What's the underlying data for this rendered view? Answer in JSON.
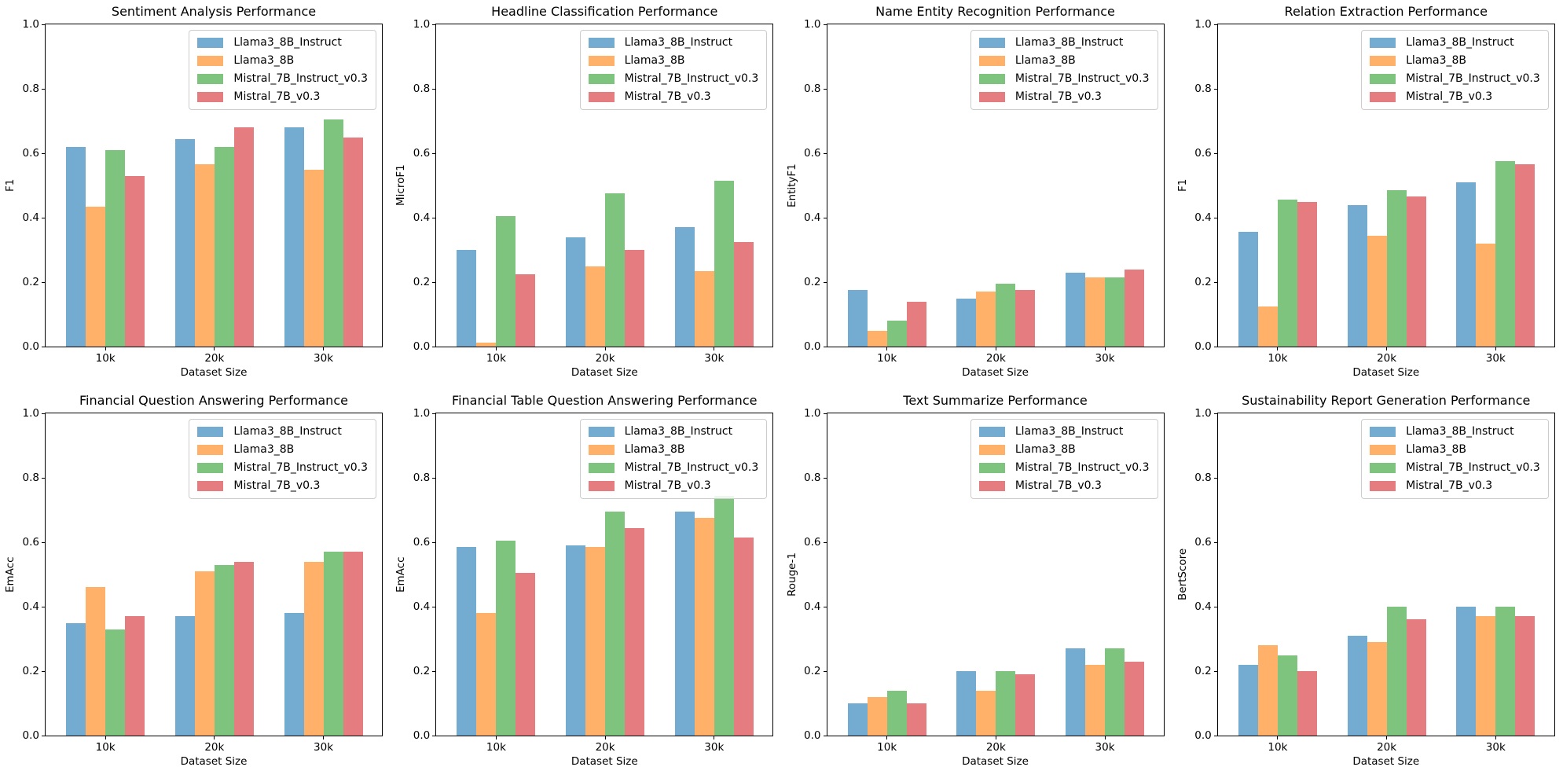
{
  "figure": {
    "background": "#ffffff"
  },
  "series_colors": [
    "#74ABD1",
    "#FFB169",
    "#7EC47E",
    "#E57D80"
  ],
  "legend": {
    "labels": [
      "Llama3_8B_Instruct",
      "Llama3_8B",
      "Mistral_7B_Instruct_v0.3",
      "Mistral_7B_v0.3"
    ],
    "position": "upper right"
  },
  "axis": {
    "yticks": [
      "0.0",
      "0.2",
      "0.4",
      "0.6",
      "0.8",
      "1.0"
    ],
    "ylim": [
      0,
      1
    ],
    "grid": false
  },
  "chart_data": [
    {
      "type": "bar",
      "title": "Sentiment Analysis Performance",
      "ylabel": "F1",
      "xlabel": "Dataset Size",
      "categories": [
        "10k",
        "20k",
        "30k"
      ],
      "ylim": [
        0,
        1
      ],
      "legend_position": "upper right",
      "series": [
        {
          "name": "Llama3_8B_Instruct",
          "values": [
            0.62,
            0.645,
            0.68
          ]
        },
        {
          "name": "Llama3_8B",
          "values": [
            0.435,
            0.565,
            0.55
          ]
        },
        {
          "name": "Mistral_7B_Instruct_v0.3",
          "values": [
            0.61,
            0.62,
            0.705
          ]
        },
        {
          "name": "Mistral_7B_v0.3",
          "values": [
            0.53,
            0.68,
            0.65
          ]
        }
      ]
    },
    {
      "type": "bar",
      "title": "Headline Classification Performance",
      "ylabel": "MicroF1",
      "xlabel": "Dataset Size",
      "categories": [
        "10k",
        "20k",
        "30k"
      ],
      "ylim": [
        0,
        1
      ],
      "legend_position": "upper right",
      "series": [
        {
          "name": "Llama3_8B_Instruct",
          "values": [
            0.3,
            0.34,
            0.37
          ]
        },
        {
          "name": "Llama3_8B",
          "values": [
            0.012,
            0.25,
            0.235
          ]
        },
        {
          "name": "Mistral_7B_Instruct_v0.3",
          "values": [
            0.405,
            0.475,
            0.515
          ]
        },
        {
          "name": "Mistral_7B_v0.3",
          "values": [
            0.225,
            0.3,
            0.325
          ]
        }
      ]
    },
    {
      "type": "bar",
      "title": "Name Entity Recognition Performance",
      "ylabel": "EntityF1",
      "xlabel": "Dataset Size",
      "categories": [
        "10k",
        "20k",
        "30k"
      ],
      "ylim": [
        0,
        1
      ],
      "legend_position": "upper right",
      "series": [
        {
          "name": "Llama3_8B_Instruct",
          "values": [
            0.175,
            0.15,
            0.23
          ]
        },
        {
          "name": "Llama3_8B",
          "values": [
            0.05,
            0.17,
            0.215
          ]
        },
        {
          "name": "Mistral_7B_Instruct_v0.3",
          "values": [
            0.08,
            0.195,
            0.215
          ]
        },
        {
          "name": "Mistral_7B_v0.3",
          "values": [
            0.14,
            0.175,
            0.24
          ]
        }
      ]
    },
    {
      "type": "bar",
      "title": "Relation Extraction Performance",
      "ylabel": "F1",
      "xlabel": "Dataset Size",
      "categories": [
        "10k",
        "20k",
        "30k"
      ],
      "ylim": [
        0,
        1
      ],
      "legend_position": "upper right",
      "series": [
        {
          "name": "Llama3_8B_Instruct",
          "values": [
            0.355,
            0.44,
            0.51
          ]
        },
        {
          "name": "Llama3_8B",
          "values": [
            0.125,
            0.345,
            0.32
          ]
        },
        {
          "name": "Mistral_7B_Instruct_v0.3",
          "values": [
            0.455,
            0.485,
            0.575
          ]
        },
        {
          "name": "Mistral_7B_v0.3",
          "values": [
            0.45,
            0.465,
            0.565
          ]
        }
      ]
    },
    {
      "type": "bar",
      "title": "Financial Question Answering Performance",
      "ylabel": "EmAcc",
      "xlabel": "Dataset Size",
      "categories": [
        "10k",
        "20k",
        "30k"
      ],
      "ylim": [
        0,
        1
      ],
      "legend_position": "upper right",
      "series": [
        {
          "name": "Llama3_8B_Instruct",
          "values": [
            0.35,
            0.37,
            0.38
          ]
        },
        {
          "name": "Llama3_8B",
          "values": [
            0.46,
            0.51,
            0.54
          ]
        },
        {
          "name": "Mistral_7B_Instruct_v0.3",
          "values": [
            0.33,
            0.53,
            0.57
          ]
        },
        {
          "name": "Mistral_7B_v0.3",
          "values": [
            0.37,
            0.54,
            0.57
          ]
        }
      ]
    },
    {
      "type": "bar",
      "title": "Financial Table Question Answering Performance",
      "ylabel": "EmAcc",
      "xlabel": "Dataset Size",
      "categories": [
        "10k",
        "20k",
        "30k"
      ],
      "ylim": [
        0,
        1
      ],
      "legend_position": "upper right",
      "series": [
        {
          "name": "Llama3_8B_Instruct",
          "values": [
            0.585,
            0.59,
            0.695
          ]
        },
        {
          "name": "Llama3_8B",
          "values": [
            0.38,
            0.585,
            0.675
          ]
        },
        {
          "name": "Mistral_7B_Instruct_v0.3",
          "values": [
            0.605,
            0.695,
            0.745
          ]
        },
        {
          "name": "Mistral_7B_v0.3",
          "values": [
            0.505,
            0.645,
            0.615
          ]
        }
      ]
    },
    {
      "type": "bar",
      "title": "Text Summarize Performance",
      "ylabel": "Rouge-1",
      "xlabel": "Dataset Size",
      "categories": [
        "10k",
        "20k",
        "30k"
      ],
      "ylim": [
        0,
        1
      ],
      "legend_position": "upper right",
      "series": [
        {
          "name": "Llama3_8B_Instruct",
          "values": [
            0.1,
            0.2,
            0.27
          ]
        },
        {
          "name": "Llama3_8B",
          "values": [
            0.12,
            0.14,
            0.22
          ]
        },
        {
          "name": "Mistral_7B_Instruct_v0.3",
          "values": [
            0.14,
            0.2,
            0.27
          ]
        },
        {
          "name": "Mistral_7B_v0.3",
          "values": [
            0.1,
            0.19,
            0.23
          ]
        }
      ]
    },
    {
      "type": "bar",
      "title": "Sustainability Report Generation Performance",
      "ylabel": "BertScore",
      "xlabel": "Dataset Size",
      "categories": [
        "10k",
        "20k",
        "30k"
      ],
      "ylim": [
        0,
        1
      ],
      "legend_position": "upper right",
      "series": [
        {
          "name": "Llama3_8B_Instruct",
          "values": [
            0.22,
            0.31,
            0.4
          ]
        },
        {
          "name": "Llama3_8B",
          "values": [
            0.28,
            0.29,
            0.37
          ]
        },
        {
          "name": "Mistral_7B_Instruct_v0.3",
          "values": [
            0.25,
            0.4,
            0.4
          ]
        },
        {
          "name": "Mistral_7B_v0.3",
          "values": [
            0.2,
            0.36,
            0.37
          ]
        }
      ]
    }
  ]
}
